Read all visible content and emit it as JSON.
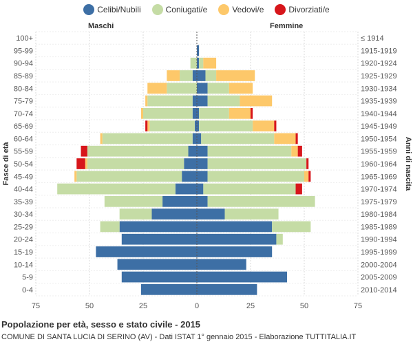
{
  "legend": {
    "celibi": "Celibi/Nubili",
    "coniugati": "Coniugati/e",
    "vedovi": "Vedovi/e",
    "divorziati": "Divorziati/e"
  },
  "header": {
    "left_label": "Maschi",
    "right_label": "Femmine"
  },
  "footer": {
    "title": "Popolazione per età, sesso e stato civile - 2015",
    "subtitle": "COMUNE DI SANTA LUCIA DI SERINO (AV) - Dati ISTAT 1° gennaio 2015 - Elaborazione TUTTITALIA.IT"
  },
  "colors": {
    "celibi": "#3d6fa5",
    "coniugati": "#c5dca5",
    "vedovi": "#fdc86a",
    "divorziati": "#d7161b",
    "grid": "#d9d9d9",
    "text": "#555555"
  },
  "chart_data": {
    "type": "bar",
    "orientation": "horizontal",
    "ylabel_left": "Fasce di età",
    "ylabel_right": "Anni di nascita",
    "xlim": [
      -75,
      75
    ],
    "x_ticks": [
      -75,
      -50,
      -25,
      0,
      25,
      50,
      75
    ],
    "x_tick_labels": [
      "75",
      "50",
      "25",
      "0",
      "25",
      "50",
      "75"
    ],
    "age_groups": [
      "100+",
      "95-99",
      "90-94",
      "85-89",
      "80-84",
      "75-79",
      "70-74",
      "65-69",
      "60-64",
      "55-59",
      "50-54",
      "45-49",
      "40-44",
      "35-39",
      "30-34",
      "25-29",
      "20-24",
      "15-19",
      "10-14",
      "5-9",
      "0-4"
    ],
    "birth_years": [
      "≤ 1914",
      "1915-1919",
      "1920-1924",
      "1925-1929",
      "1930-1934",
      "1935-1939",
      "1940-1944",
      "1945-1949",
      "1950-1954",
      "1955-1959",
      "1960-1964",
      "1965-1969",
      "1970-1974",
      "1975-1979",
      "1980-1984",
      "1985-1989",
      "1990-1994",
      "1995-1999",
      "2000-2004",
      "2005-2009",
      "2010-2014"
    ],
    "series_order": [
      "celibi",
      "coniugati",
      "vedovi",
      "divorziati"
    ],
    "males": {
      "celibi": [
        0,
        0,
        0,
        2,
        0,
        2,
        2,
        1,
        2,
        4,
        6,
        7,
        10,
        16,
        21,
        36,
        35,
        47,
        37,
        35,
        26
      ],
      "coniugati": [
        0,
        0,
        3,
        6,
        14,
        21,
        23,
        21,
        42,
        47,
        45,
        49,
        55,
        27,
        15,
        9,
        0,
        0,
        0,
        0,
        0
      ],
      "vedovi": [
        0,
        0,
        0,
        6,
        9,
        1,
        1,
        1,
        1,
        0,
        1,
        1,
        0,
        0,
        0,
        0,
        0,
        0,
        0,
        0,
        0
      ],
      "divorziati": [
        0,
        0,
        0,
        0,
        0,
        0,
        0,
        1,
        0,
        3,
        4,
        0,
        0,
        0,
        0,
        0,
        0,
        0,
        0,
        0,
        0
      ]
    },
    "females": {
      "celibi": [
        0,
        1,
        1,
        4,
        5,
        5,
        1,
        1,
        2,
        5,
        5,
        5,
        3,
        5,
        13,
        35,
        37,
        35,
        23,
        42,
        28
      ],
      "coniugati": [
        0,
        0,
        2,
        5,
        10,
        15,
        14,
        25,
        34,
        39,
        46,
        45,
        43,
        50,
        25,
        18,
        3,
        0,
        0,
        0,
        0
      ],
      "vedovi": [
        0,
        0,
        6,
        18,
        11,
        15,
        10,
        10,
        10,
        3,
        0,
        2,
        0,
        0,
        0,
        0,
        0,
        0,
        0,
        0,
        0
      ],
      "divorziati": [
        0,
        0,
        0,
        0,
        0,
        0,
        1,
        1,
        1,
        2,
        1,
        1,
        3,
        0,
        0,
        0,
        0,
        0,
        0,
        0,
        0
      ]
    }
  }
}
